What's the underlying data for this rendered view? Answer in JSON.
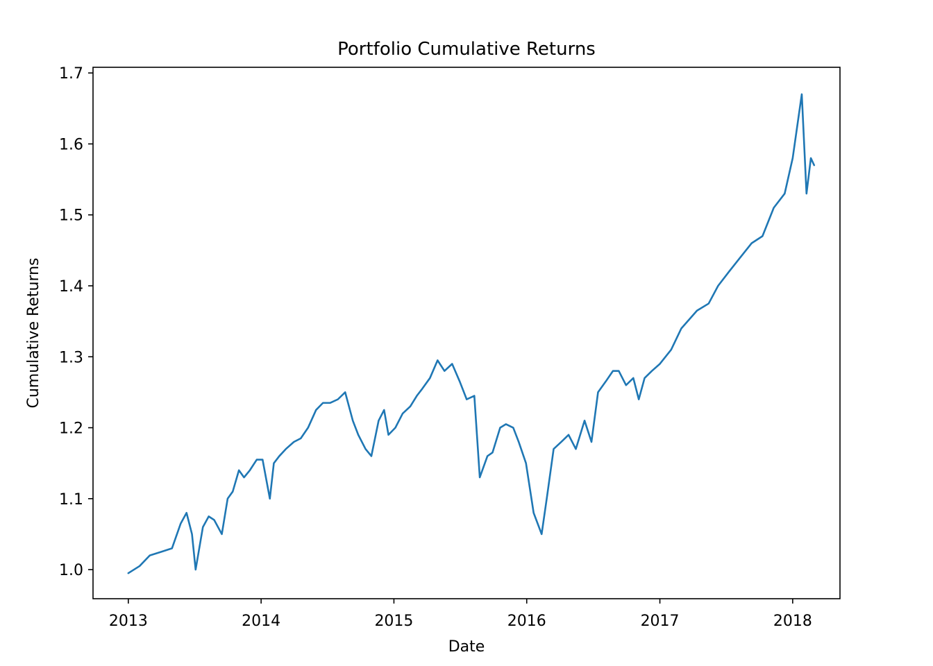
{
  "chart_data": {
    "type": "line",
    "title": "Portfolio Cumulative Returns",
    "xlabel": "Date",
    "ylabel": "Cumulative Returns",
    "x_ticks": [
      "2013",
      "2014",
      "2015",
      "2016",
      "2017",
      "2018"
    ],
    "y_ticks": [
      "1.0",
      "1.1",
      "1.2",
      "1.3",
      "1.4",
      "1.5",
      "1.6",
      "1.7"
    ],
    "xlim": [
      "2012-09-26",
      "2018-05-11"
    ],
    "ylim": [
      0.959,
      1.708
    ],
    "grid": false,
    "line_color": "#1f77b4",
    "series": [
      {
        "x": [
          "2013-01-01",
          "2013-02-01",
          "2013-03-01",
          "2013-04-01",
          "2013-05-01",
          "2013-05-25",
          "2013-06-10",
          "2013-06-25",
          "2013-07-05",
          "2013-07-25",
          "2013-08-10",
          "2013-08-25",
          "2013-09-15",
          "2013-10-01",
          "2013-10-15",
          "2013-11-01",
          "2013-11-15",
          "2013-12-01",
          "2013-12-20",
          "2014-01-05",
          "2014-01-25",
          "2014-02-05",
          "2014-02-20",
          "2014-03-10",
          "2014-04-01",
          "2014-04-20",
          "2014-05-10",
          "2014-06-01",
          "2014-06-20",
          "2014-07-10",
          "2014-07-31",
          "2014-08-20",
          "2014-09-10",
          "2014-09-25",
          "2014-10-15",
          "2014-10-31",
          "2014-11-20",
          "2014-12-05",
          "2014-12-17",
          "2015-01-05",
          "2015-01-25",
          "2015-02-15",
          "2015-03-05",
          "2015-03-20",
          "2015-04-10",
          "2015-05-01",
          "2015-05-20",
          "2015-06-10",
          "2015-07-01",
          "2015-07-20",
          "2015-08-10",
          "2015-08-25",
          "2015-09-15",
          "2015-09-29",
          "2015-10-20",
          "2015-11-05",
          "2015-11-25",
          "2015-12-10",
          "2015-12-30",
          "2016-01-20",
          "2016-02-11",
          "2016-02-25",
          "2016-03-15",
          "2016-04-05",
          "2016-04-25",
          "2016-05-15",
          "2016-06-08",
          "2016-06-27",
          "2016-07-15",
          "2016-08-05",
          "2016-08-25",
          "2016-09-10",
          "2016-09-30",
          "2016-10-20",
          "2016-11-04",
          "2016-11-20",
          "2016-12-10",
          "2017-01-01",
          "2017-02-01",
          "2017-03-01",
          "2017-04-13",
          "2017-05-15",
          "2017-06-10",
          "2017-07-10",
          "2017-08-10",
          "2017-09-10",
          "2017-10-10",
          "2017-11-10",
          "2017-12-10",
          "2018-01-01",
          "2018-01-26",
          "2018-02-08",
          "2018-02-20",
          "2018-03-01"
        ],
        "values": [
          0.995,
          1.005,
          1.02,
          1.025,
          1.03,
          1.065,
          1.08,
          1.05,
          1.0,
          1.06,
          1.075,
          1.07,
          1.05,
          1.1,
          1.11,
          1.14,
          1.13,
          1.14,
          1.155,
          1.155,
          1.1,
          1.15,
          1.16,
          1.17,
          1.18,
          1.185,
          1.2,
          1.225,
          1.235,
          1.235,
          1.24,
          1.25,
          1.21,
          1.19,
          1.17,
          1.16,
          1.21,
          1.225,
          1.19,
          1.2,
          1.22,
          1.23,
          1.245,
          1.255,
          1.27,
          1.295,
          1.28,
          1.29,
          1.265,
          1.24,
          1.245,
          1.13,
          1.16,
          1.165,
          1.2,
          1.205,
          1.2,
          1.18,
          1.15,
          1.08,
          1.05,
          1.1,
          1.17,
          1.18,
          1.19,
          1.17,
          1.21,
          1.18,
          1.25,
          1.265,
          1.28,
          1.28,
          1.26,
          1.27,
          1.24,
          1.27,
          1.28,
          1.29,
          1.31,
          1.34,
          1.365,
          1.375,
          1.4,
          1.42,
          1.44,
          1.46,
          1.47,
          1.51,
          1.53,
          1.58,
          1.67,
          1.53,
          1.58,
          1.57
        ]
      }
    ]
  }
}
